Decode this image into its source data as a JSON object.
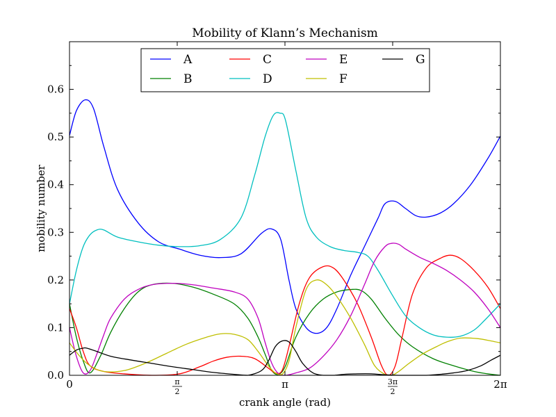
{
  "chart_data": {
    "type": "line",
    "title": "Mobility of Klann’s Mechanism",
    "xlabel": "crank angle (rad)",
    "ylabel": "mobility number",
    "xlim": [
      0,
      6.2832
    ],
    "ylim": [
      0,
      0.7
    ],
    "x_ticks": [
      {
        "value": 0,
        "label": "0"
      },
      {
        "value": 1.5708,
        "label": "π/2"
      },
      {
        "value": 3.1416,
        "label": "π"
      },
      {
        "value": 4.7124,
        "label": "3π/2"
      },
      {
        "value": 6.2832,
        "label": "2π"
      }
    ],
    "y_ticks": [
      {
        "value": 0.0,
        "label": "0.0"
      },
      {
        "value": 0.1,
        "label": "0.1"
      },
      {
        "value": 0.2,
        "label": "0.2"
      },
      {
        "value": 0.3,
        "label": "0.3"
      },
      {
        "value": 0.4,
        "label": "0.4"
      },
      {
        "value": 0.5,
        "label": "0.5"
      },
      {
        "value": 0.6,
        "label": "0.6"
      }
    ],
    "grid": false,
    "legend": {
      "placement": "top-center",
      "columns": 4
    },
    "series": [
      {
        "name": "A",
        "color": "#0000ff",
        "x": [
          0,
          0.1,
          0.23,
          0.35,
          0.5,
          0.7,
          1.0,
          1.3,
          1.6,
          1.9,
          2.2,
          2.5,
          2.8,
          2.95,
          3.08,
          3.2,
          3.3,
          3.45,
          3.6,
          3.75,
          3.9,
          4.1,
          4.3,
          4.5,
          4.6,
          4.75,
          4.9,
          5.05,
          5.2,
          5.4,
          5.6,
          5.85,
          6.1,
          6.2832
        ],
        "y": [
          0.503,
          0.555,
          0.578,
          0.56,
          0.48,
          0.39,
          0.32,
          0.28,
          0.265,
          0.252,
          0.247,
          0.255,
          0.298,
          0.307,
          0.285,
          0.2,
          0.14,
          0.1,
          0.088,
          0.1,
          0.14,
          0.21,
          0.27,
          0.33,
          0.36,
          0.365,
          0.35,
          0.335,
          0.332,
          0.34,
          0.36,
          0.4,
          0.455,
          0.502
        ]
      },
      {
        "name": "B",
        "color": "#008000",
        "x": [
          0,
          0.1,
          0.2,
          0.3,
          0.45,
          0.6,
          0.8,
          1.0,
          1.2,
          1.5,
          1.8,
          2.1,
          2.4,
          2.6,
          2.75,
          2.85,
          2.95,
          3.05,
          3.15,
          3.3,
          3.5,
          3.7,
          3.9,
          4.1,
          4.25,
          4.4,
          4.6,
          4.8,
          5.0,
          5.3,
          5.6,
          5.9,
          6.1,
          6.2832
        ],
        "y": [
          0.15,
          0.08,
          0.03,
          0.005,
          0.04,
          0.09,
          0.14,
          0.175,
          0.19,
          0.193,
          0.185,
          0.17,
          0.15,
          0.12,
          0.08,
          0.045,
          0.01,
          0.002,
          0.02,
          0.08,
          0.13,
          0.16,
          0.175,
          0.18,
          0.178,
          0.16,
          0.12,
          0.085,
          0.06,
          0.035,
          0.02,
          0.008,
          0.003,
          0.0
        ]
      },
      {
        "name": "C",
        "color": "#ff0000",
        "x": [
          0,
          0.1,
          0.2,
          0.3,
          0.5,
          0.8,
          1.2,
          1.6,
          1.9,
          2.1,
          2.3,
          2.5,
          2.7,
          2.9,
          3.0,
          3.1,
          3.2,
          3.35,
          3.5,
          3.7,
          3.85,
          4.0,
          4.2,
          4.4,
          4.55,
          4.65,
          4.75,
          4.85,
          5.0,
          5.2,
          5.4,
          5.55,
          5.7,
          5.9,
          6.1,
          6.2832
        ],
        "y": [
          0.14,
          0.1,
          0.05,
          0.02,
          0.008,
          0.003,
          0.0,
          0.003,
          0.018,
          0.03,
          0.038,
          0.04,
          0.035,
          0.015,
          0.005,
          0.01,
          0.06,
          0.15,
          0.205,
          0.228,
          0.225,
          0.2,
          0.15,
          0.08,
          0.02,
          0.0,
          0.02,
          0.08,
          0.17,
          0.225,
          0.245,
          0.252,
          0.245,
          0.22,
          0.185,
          0.14
        ]
      },
      {
        "name": "D",
        "color": "#00bfbf",
        "x": [
          0,
          0.1,
          0.2,
          0.3,
          0.4,
          0.5,
          0.7,
          1.0,
          1.3,
          1.6,
          1.9,
          2.2,
          2.5,
          2.7,
          2.85,
          2.97,
          3.07,
          3.15,
          3.3,
          3.45,
          3.6,
          3.8,
          4.0,
          4.2,
          4.35,
          4.5,
          4.7,
          4.9,
          5.1,
          5.3,
          5.5,
          5.7,
          5.9,
          6.05,
          6.2832
        ],
        "y": [
          0.15,
          0.22,
          0.27,
          0.295,
          0.305,
          0.305,
          0.29,
          0.28,
          0.273,
          0.27,
          0.272,
          0.285,
          0.33,
          0.42,
          0.5,
          0.545,
          0.55,
          0.535,
          0.43,
          0.33,
          0.29,
          0.27,
          0.262,
          0.258,
          0.25,
          0.22,
          0.17,
          0.125,
          0.1,
          0.085,
          0.08,
          0.082,
          0.095,
          0.115,
          0.15
        ]
      },
      {
        "name": "E",
        "color": "#bf00bf",
        "x": [
          0,
          0.1,
          0.2,
          0.3,
          0.4,
          0.5,
          0.6,
          0.8,
          1.0,
          1.2,
          1.5,
          1.8,
          2.1,
          2.4,
          2.6,
          2.75,
          2.85,
          2.95,
          3.05,
          3.15,
          3.3,
          3.5,
          3.7,
          3.9,
          4.1,
          4.3,
          4.45,
          4.6,
          4.7,
          4.8,
          4.9,
          5.1,
          5.3,
          5.5,
          5.7,
          5.9,
          6.1,
          6.2832
        ],
        "y": [
          0.1,
          0.04,
          0.005,
          0.01,
          0.045,
          0.085,
          0.12,
          0.16,
          0.18,
          0.19,
          0.193,
          0.19,
          0.183,
          0.175,
          0.16,
          0.12,
          0.07,
          0.025,
          0.003,
          0.0,
          0.005,
          0.015,
          0.04,
          0.075,
          0.125,
          0.19,
          0.24,
          0.27,
          0.277,
          0.275,
          0.265,
          0.248,
          0.235,
          0.22,
          0.2,
          0.175,
          0.14,
          0.1
        ]
      },
      {
        "name": "F",
        "color": "#bfbf00",
        "x": [
          0,
          0.15,
          0.3,
          0.5,
          0.8,
          1.1,
          1.4,
          1.7,
          2.0,
          2.2,
          2.4,
          2.6,
          2.75,
          2.9,
          3.0,
          3.1,
          3.2,
          3.3,
          3.45,
          3.6,
          3.75,
          3.9,
          4.1,
          4.3,
          4.45,
          4.6,
          4.7,
          4.8,
          4.95,
          5.15,
          5.35,
          5.5,
          5.7,
          5.95,
          6.15,
          6.2832
        ],
        "y": [
          0.068,
          0.04,
          0.02,
          0.008,
          0.01,
          0.025,
          0.045,
          0.065,
          0.08,
          0.087,
          0.086,
          0.075,
          0.05,
          0.02,
          0.005,
          0.002,
          0.03,
          0.1,
          0.18,
          0.2,
          0.19,
          0.165,
          0.12,
          0.065,
          0.02,
          0.002,
          0.0,
          0.008,
          0.025,
          0.045,
          0.06,
          0.07,
          0.078,
          0.077,
          0.072,
          0.068
        ]
      },
      {
        "name": "G",
        "color": "#000000",
        "x": [
          0,
          0.1,
          0.2,
          0.25,
          0.4,
          0.6,
          0.9,
          1.2,
          1.5,
          1.8,
          2.1,
          2.4,
          2.6,
          2.8,
          2.9,
          3.0,
          3.1,
          3.2,
          3.3,
          3.4,
          3.55,
          3.7,
          3.85,
          4.0,
          4.2,
          4.4,
          4.6,
          4.8,
          5.0,
          5.2,
          5.4,
          5.6,
          5.8,
          6.0,
          6.15,
          6.2832
        ],
        "y": [
          0.042,
          0.053,
          0.057,
          0.057,
          0.05,
          0.04,
          0.032,
          0.025,
          0.018,
          0.012,
          0.006,
          0.002,
          0.0,
          0.01,
          0.03,
          0.06,
          0.072,
          0.07,
          0.05,
          0.025,
          0.005,
          0.0,
          0.0,
          0.002,
          0.003,
          0.003,
          0.001,
          0.0,
          0.0,
          0.0,
          0.002,
          0.005,
          0.01,
          0.02,
          0.032,
          0.042
        ]
      }
    ]
  }
}
